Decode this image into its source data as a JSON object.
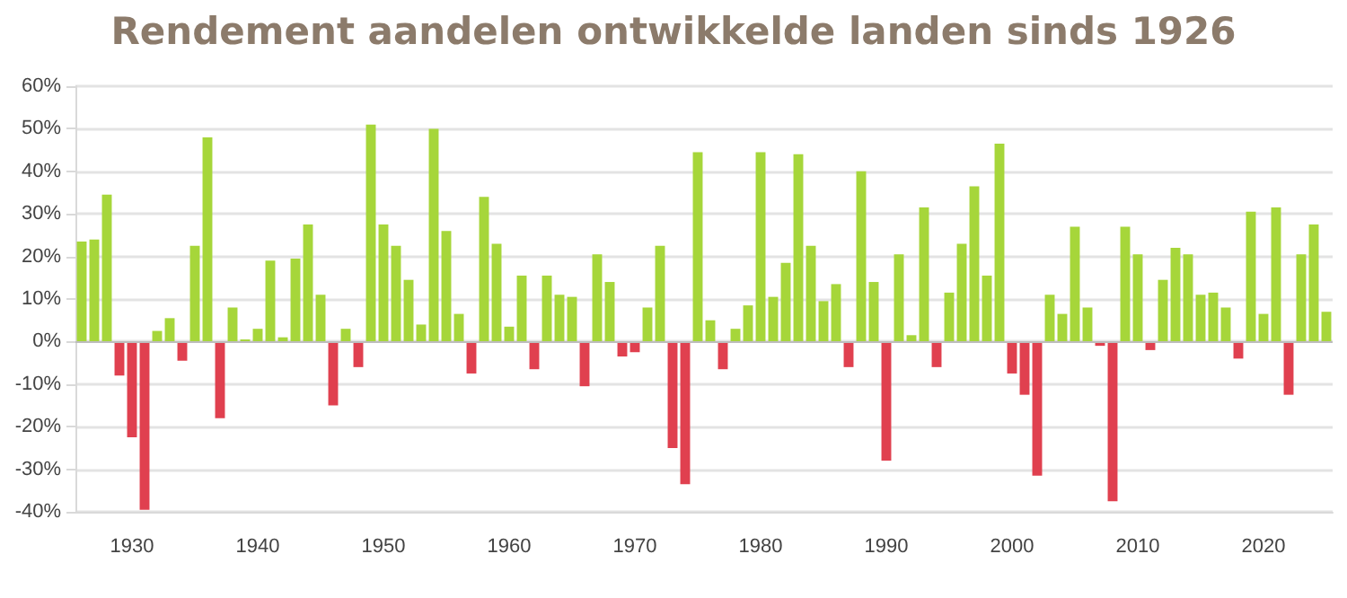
{
  "chart_data": {
    "type": "bar",
    "title": "Rendement aandelen ontwikkelde landen sinds 1926",
    "categories": [
      null,
      null,
      null,
      null,
      "1930",
      null,
      null,
      null,
      null,
      null,
      null,
      null,
      null,
      null,
      "1940",
      null,
      null,
      null,
      null,
      null,
      null,
      null,
      null,
      null,
      "1950",
      null,
      null,
      null,
      null,
      null,
      null,
      null,
      null,
      null,
      "1960",
      null,
      null,
      null,
      null,
      null,
      null,
      null,
      null,
      null,
      "1970",
      null,
      null,
      null,
      null,
      null,
      null,
      null,
      null,
      null,
      "1980",
      null,
      null,
      null,
      null,
      null,
      null,
      null,
      null,
      null,
      "1990",
      null,
      null,
      null,
      null,
      null,
      null,
      null,
      null,
      null,
      "2000",
      null,
      null,
      null,
      null,
      null,
      null,
      null,
      null,
      null,
      "2010",
      null,
      null,
      null,
      null,
      null,
      null,
      null,
      null,
      null,
      "2020",
      null,
      null,
      null,
      null,
      null
    ],
    "values": [
      23.5,
      24,
      34.5,
      -8,
      -22.5,
      -39.5,
      2.5,
      5.5,
      -4.5,
      22.5,
      48,
      -18,
      8,
      0.5,
      3,
      19,
      1,
      19.5,
      27.5,
      11,
      -15,
      3,
      -6,
      51,
      27.5,
      22.5,
      14.5,
      4,
      50,
      26,
      6.5,
      -7.5,
      34,
      23,
      3.5,
      15.5,
      -6.5,
      15.5,
      11,
      10.5,
      -10.5,
      20.5,
      14,
      -3.5,
      -2.5,
      8,
      22.5,
      -25,
      -33.5,
      44.5,
      5,
      -6.5,
      3,
      8.5,
      44.5,
      10.5,
      18.5,
      44,
      22.5,
      9.5,
      13.5,
      -6,
      40,
      14,
      -28,
      20.5,
      1.5,
      31.5,
      -6,
      11.5,
      23,
      36.5,
      15.5,
      46.5,
      -7.5,
      -12.5,
      -31.5,
      11,
      6.5,
      27,
      8,
      -1,
      -37.5,
      27,
      20.5,
      -2,
      14.5,
      22,
      20.5,
      11,
      11.5,
      8,
      -4,
      30.5,
      6.5,
      31.5,
      -12.5,
      20.5,
      27.5,
      7
    ],
    "colors": [
      "#a6d63a",
      "#a6d63a",
      "#a6d63a",
      "#e0404f",
      "#e0404f",
      "#e0404f",
      "#a6d63a",
      "#a6d63a",
      "#e0404f",
      "#a6d63a",
      "#a6d63a",
      "#e0404f",
      "#a6d63a",
      "#a6d63a",
      "#a6d63a",
      "#a6d63a",
      "#a6d63a",
      "#a6d63a",
      "#a6d63a",
      "#a6d63a",
      "#e0404f",
      "#a6d63a",
      "#e0404f",
      "#a6d63a",
      "#a6d63a",
      "#a6d63a",
      "#a6d63a",
      "#a6d63a",
      "#a6d63a",
      "#a6d63a",
      "#a6d63a",
      "#e0404f",
      "#a6d63a",
      "#a6d63a",
      "#a6d63a",
      "#a6d63a",
      "#e0404f",
      "#a6d63a",
      "#a6d63a",
      "#a6d63a",
      "#e0404f",
      "#a6d63a",
      "#a6d63a",
      "#e0404f",
      "#e0404f",
      "#a6d63a",
      "#a6d63a",
      "#e0404f",
      "#e0404f",
      "#a6d63a",
      "#a6d63a",
      "#e0404f",
      "#a6d63a",
      "#a6d63a",
      "#a6d63a",
      "#a6d63a",
      "#a6d63a",
      "#a6d63a",
      "#a6d63a",
      "#a6d63a",
      "#a6d63a",
      "#e0404f",
      "#a6d63a",
      "#a6d63a",
      "#e0404f",
      "#a6d63a",
      "#a6d63a",
      "#a6d63a",
      "#e0404f",
      "#a6d63a",
      "#a6d63a",
      "#a6d63a",
      "#a6d63a",
      "#a6d63a",
      "#e0404f",
      "#e0404f",
      "#e0404f",
      "#a6d63a",
      "#a6d63a",
      "#a6d63a",
      "#a6d63a",
      "#e0404f",
      "#e0404f",
      "#a6d63a",
      "#a6d63a",
      "#e0404f",
      "#a6d63a",
      "#a6d63a",
      "#a6d63a",
      "#a6d63a",
      "#a6d63a",
      "#a6d63a",
      "#e0404f",
      "#a6d63a",
      "#a6d63a",
      "#a6d63a",
      "#e0404f",
      "#a6d63a",
      "#a6d63a",
      "#a6d63a"
    ],
    "ylim": [
      -40,
      60
    ],
    "yticks": [
      {
        "value": -40,
        "label": "-40%"
      },
      {
        "value": -30,
        "label": "-30%"
      },
      {
        "value": -20,
        "label": "-20%"
      },
      {
        "value": -10,
        "label": "-10%"
      },
      {
        "value": 0,
        "label": "0%"
      },
      {
        "value": 10,
        "label": "10%"
      },
      {
        "value": 20,
        "label": "20%"
      },
      {
        "value": 30,
        "label": "30%"
      },
      {
        "value": 40,
        "label": "40%"
      },
      {
        "value": 50,
        "label": "50%"
      },
      {
        "value": 60,
        "label": "60%"
      }
    ],
    "grid": "y"
  }
}
